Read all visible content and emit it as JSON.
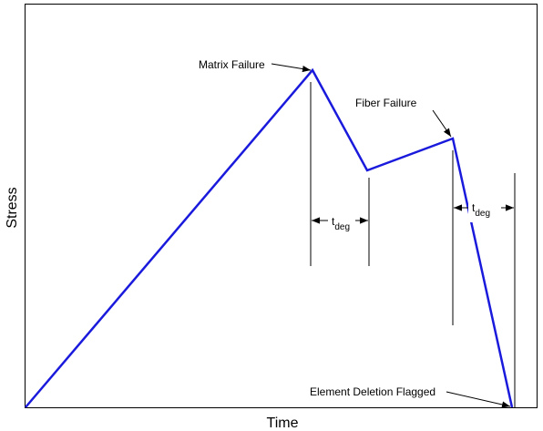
{
  "axes": {
    "y_label": "Stress",
    "x_label": "Time"
  },
  "annotations": {
    "matrix_failure": "Matrix Failure",
    "fiber_failure": "Fiber Failure",
    "element_deletion": "Element Deletion Flagged"
  },
  "durations": [
    {
      "symbol": "t",
      "subscript": "deg"
    },
    {
      "symbol": "t",
      "subscript": "deg"
    }
  ]
}
